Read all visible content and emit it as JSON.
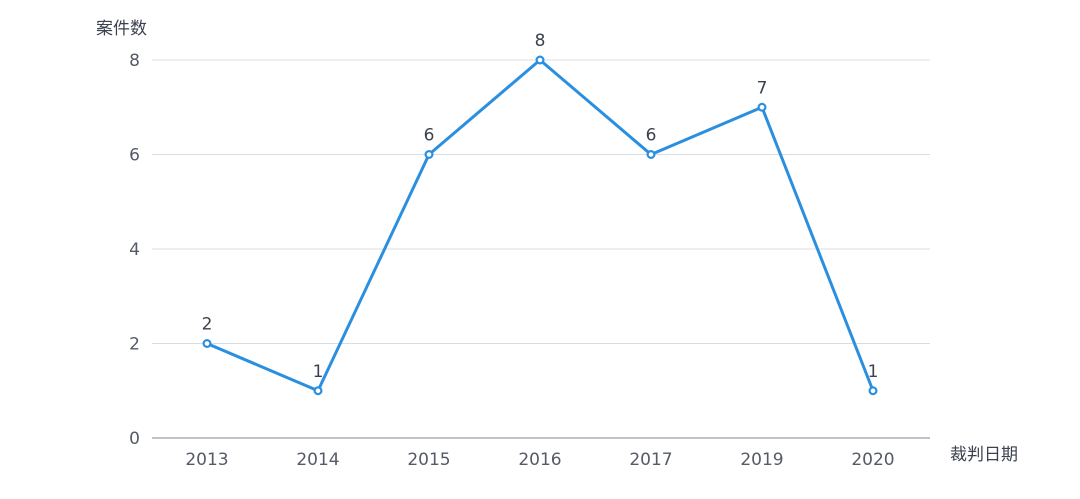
{
  "chart_data": {
    "type": "line",
    "title": "",
    "xlabel": "裁判日期",
    "ylabel": "案件数",
    "categories": [
      "2013",
      "2014",
      "2015",
      "2016",
      "2017",
      "2019",
      "2020"
    ],
    "series": [
      {
        "values": [
          2,
          1,
          6,
          8,
          6,
          7,
          1
        ]
      }
    ],
    "ylim": [
      0,
      8
    ],
    "yticks": [
      0,
      2,
      4,
      6,
      8
    ],
    "grid": true,
    "data_labels": true,
    "color": "#2b8fe0"
  }
}
